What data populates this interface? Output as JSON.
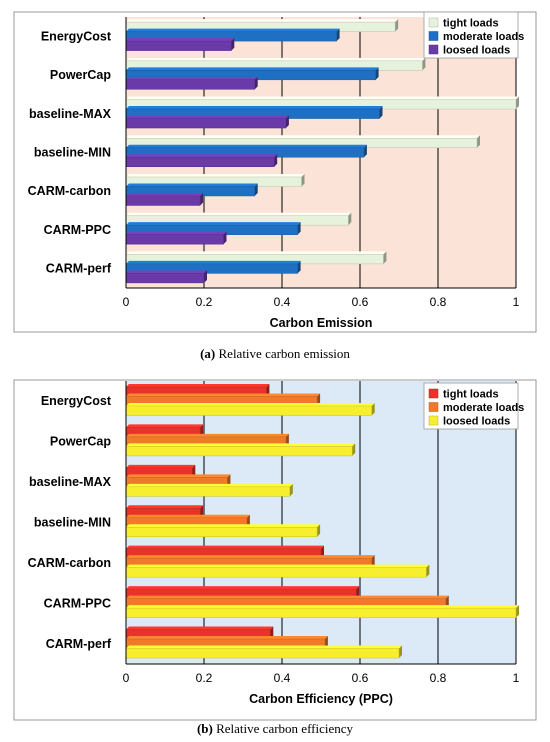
{
  "charts": [
    {
      "caption_tag": "(a)",
      "caption_text": "Relative carbon emission",
      "chart_data": {
        "type": "bar",
        "orientation": "horizontal",
        "categories": [
          "EnergyCost",
          "PowerCap",
          "baseline-MAX",
          "baseline-MIN",
          "CARM-carbon",
          "CARM-PPC",
          "CARM-perf"
        ],
        "series": [
          {
            "name": "tight loads",
            "color": "#e6f2dc",
            "values": [
              0.69,
              0.76,
              1.0,
              0.9,
              0.45,
              0.57,
              0.66
            ]
          },
          {
            "name": "moderate loads",
            "color": "#1f6fc2",
            "values": [
              0.54,
              0.64,
              0.65,
              0.61,
              0.33,
              0.44,
              0.44
            ]
          },
          {
            "name": "loosed loads",
            "color": "#6a3aa8",
            "values": [
              0.27,
              0.33,
              0.41,
              0.38,
              0.19,
              0.25,
              0.2
            ]
          }
        ],
        "xlabel": "Carbon Emission",
        "xlim": [
          0,
          1
        ],
        "xticks": [
          "0",
          "0.2",
          "0.4",
          "0.6",
          "0.8",
          "1"
        ],
        "grid": true,
        "legend_position": "top-right",
        "plot_background": "#fbe3d8"
      }
    },
    {
      "caption_tag": "(b)",
      "caption_text": "Relative carbon efficiency",
      "chart_data": {
        "type": "bar",
        "orientation": "horizontal",
        "categories": [
          "EnergyCost",
          "PowerCap",
          "baseline-MAX",
          "baseline-MIN",
          "CARM-carbon",
          "CARM-PPC",
          "CARM-perf"
        ],
        "series": [
          {
            "name": "tight loads",
            "color": "#e8322a",
            "values": [
              0.36,
              0.19,
              0.17,
              0.19,
              0.5,
              0.59,
              0.37
            ]
          },
          {
            "name": "moderate loads",
            "color": "#f07a2a",
            "values": [
              0.49,
              0.41,
              0.26,
              0.31,
              0.63,
              0.82,
              0.51
            ]
          },
          {
            "name": "loosed loads",
            "color": "#f7ef2e",
            "values": [
              0.63,
              0.58,
              0.42,
              0.49,
              0.77,
              1.0,
              0.7
            ]
          }
        ],
        "xlabel": "Carbon Efficiency (PPC)",
        "xlim": [
          0,
          1
        ],
        "xticks": [
          "0",
          "0.2",
          "0.4",
          "0.6",
          "0.8",
          "1"
        ],
        "grid": true,
        "legend_position": "top-right",
        "plot_background": "#dce9f6"
      }
    }
  ]
}
